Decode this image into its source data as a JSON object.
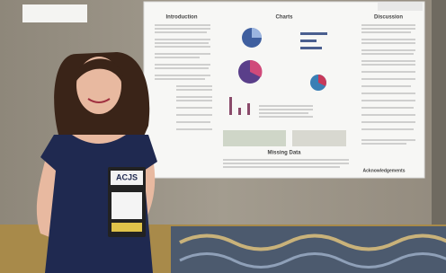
{
  "poster": {
    "sections": [
      "Introduction",
      "Charts",
      "Discussion",
      "Missing Data",
      "Acknowledgements"
    ]
  },
  "badge": {
    "org": "ACJS"
  }
}
